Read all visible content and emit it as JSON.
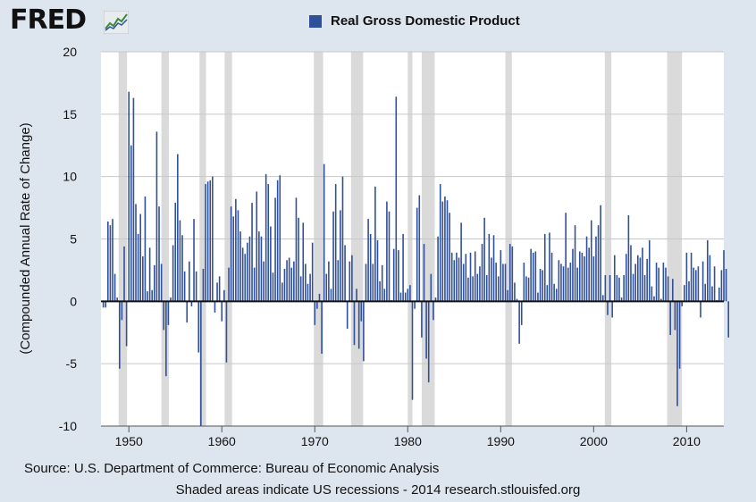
{
  "header": {
    "logo_text": "FRED",
    "logo_icon": "line-chart-icon",
    "legend_label": "Real Gross Domestic Product",
    "legend_color": "#30509a"
  },
  "footer": {
    "source": "Source: U.S. Department of Commerce: Bureau of Economic Analysis",
    "note": "Shaded areas indicate US recessions - 2014 research.stlouisfed.org"
  },
  "chart_data": {
    "type": "bar",
    "title": "",
    "xlabel": "",
    "ylabel": "(Compounded Annual Rate of Change)",
    "ylim": [
      -10,
      20
    ],
    "xlim": [
      1947,
      2014
    ],
    "y_ticks": [
      20,
      15,
      10,
      5,
      0,
      -5,
      -10
    ],
    "x_ticks": [
      1950,
      1960,
      1970,
      1980,
      1990,
      2000,
      2010
    ],
    "grid": true,
    "legend_position": "top-center",
    "bar_color": "#30509a",
    "recession_color": "#dadada",
    "recessions": [
      [
        1948.9,
        1949.8
      ],
      [
        1953.5,
        1954.3
      ],
      [
        1957.6,
        1958.3
      ],
      [
        1960.3,
        1961.1
      ],
      [
        1969.9,
        1970.9
      ],
      [
        1973.9,
        1975.2
      ],
      [
        1980.0,
        1980.5
      ],
      [
        1981.5,
        1982.9
      ],
      [
        1990.5,
        1991.2
      ],
      [
        2001.2,
        2001.9
      ],
      [
        2007.9,
        2009.5
      ]
    ],
    "series": [
      {
        "start_year": 1947.25,
        "step": 0.25,
        "values": [
          -0.5,
          -0.5,
          6.4,
          6.1,
          6.6,
          2.2,
          0.3,
          -5.4,
          -1.5,
          4.4,
          -3.6,
          16.8,
          12.5,
          16.3,
          7.8,
          5.4,
          7.0,
          3.6,
          8.4,
          0.8,
          4.3,
          0.9,
          2.9,
          13.6,
          7.6,
          3.0,
          -2.3,
          -6.0,
          -1.9,
          0.3,
          4.5,
          7.9,
          11.8,
          6.5,
          5.3,
          2.4,
          -1.7,
          3.2,
          -0.4,
          6.6,
          2.4,
          -4.1,
          -10.0,
          2.6,
          9.4,
          9.6,
          9.7,
          10.0,
          -0.9,
          1.5,
          2.0,
          -1.6,
          0.9,
          -4.9,
          2.7,
          7.6,
          6.8,
          8.2,
          7.3,
          5.6,
          4.3,
          3.8,
          4.7,
          5.2,
          7.9,
          2.7,
          8.8,
          5.6,
          5.2,
          3.2,
          10.2,
          9.4,
          6.0,
          2.3,
          8.3,
          9.7,
          10.1,
          1.5,
          2.6,
          3.3,
          3.5,
          2.7,
          3.2,
          8.3,
          6.7,
          2.0,
          6.3,
          3.0,
          1.4,
          2.2,
          4.7,
          -1.9,
          -0.6,
          0.6,
          -4.2,
          11.0,
          2.2,
          3.2,
          1.0,
          7.2,
          9.4,
          3.3,
          7.3,
          10.0,
          4.5,
          -2.2,
          3.2,
          3.7,
          -3.5,
          1.0,
          -3.8,
          -1.6,
          -4.8,
          3.0,
          6.6,
          5.4,
          3.0,
          9.2,
          4.9,
          1.6,
          2.9,
          1.0,
          8.0,
          7.2,
          0.1,
          4.2,
          16.4,
          4.1,
          0.7,
          5.4,
          0.7,
          1.0,
          1.3,
          -7.9,
          -0.6,
          7.5,
          8.5,
          -2.9,
          4.6,
          -4.6,
          -6.5,
          2.2,
          -1.5,
          0.3,
          5.2,
          9.4,
          8.0,
          8.4,
          8.1,
          7.1,
          3.9,
          3.3,
          3.9,
          3.5,
          6.3,
          3.0,
          3.8,
          1.9,
          3.9,
          2.0,
          4.0,
          2.2,
          2.8,
          4.6,
          6.7,
          2.1,
          5.4,
          3.5,
          5.3,
          3.1,
          2.0,
          4.1,
          3.0,
          3.0,
          0.9,
          4.6,
          4.4,
          1.5,
          0.2,
          -3.4,
          -1.9,
          3.1,
          2.0,
          1.9,
          4.2,
          3.9,
          4.0,
          0.7,
          2.6,
          2.5,
          5.4,
          1.3,
          5.5,
          3.9,
          1.4,
          1.0,
          3.3,
          3.0,
          2.8,
          7.1,
          2.7,
          3.1,
          4.2,
          6.1,
          2.7,
          4.0,
          3.9,
          3.6,
          5.2,
          4.3,
          6.5,
          3.6,
          5.2,
          6.1,
          7.7,
          0.5,
          2.1,
          -1.1,
          2.1,
          -1.3,
          3.7,
          2.1,
          1.9,
          0.3,
          2.1,
          3.8,
          6.9,
          4.5,
          2.2,
          3.0,
          3.7,
          3.5,
          4.3,
          2.1,
          3.4,
          4.9,
          1.2,
          0.4,
          3.1,
          2.7,
          0.2,
          3.1,
          2.7,
          2.0,
          -2.7,
          1.8,
          -2.3,
          -8.4,
          -5.4,
          -0.4,
          1.3,
          3.9,
          1.6,
          3.9,
          2.7,
          2.5,
          2.8,
          -1.3,
          3.2,
          1.4,
          4.9,
          3.7,
          1.2,
          2.8,
          0.1,
          1.1,
          2.5,
          4.1,
          2.6,
          -2.9
        ]
      }
    ]
  }
}
